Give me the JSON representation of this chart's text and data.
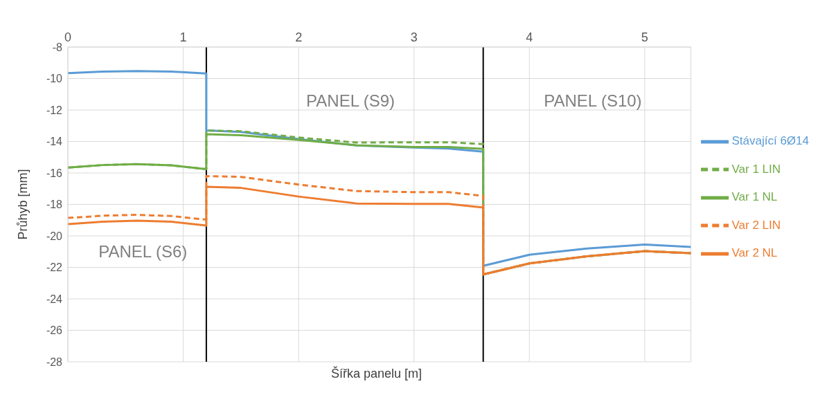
{
  "chart_data": {
    "type": "line",
    "xlabel": "Šířka panelu [m]",
    "ylabel": "Průhyb [mm]",
    "x": [
      0,
      0.3,
      0.6,
      0.9,
      1.2,
      1.2,
      1.5,
      2,
      2.5,
      3,
      3.3,
      3.6,
      3.6,
      4,
      4.5,
      5,
      5.4
    ],
    "series": [
      {
        "name": "Stávající 6Ø14",
        "color": "#5b9bd5",
        "line_style": "solid",
        "values": [
          -9.66,
          -9.56,
          -9.53,
          -9.56,
          -9.68,
          -13.3,
          -13.4,
          -13.85,
          -14.25,
          -14.38,
          -14.45,
          -14.65,
          -21.9,
          -21.2,
          -20.8,
          -20.55,
          -20.7
        ]
      },
      {
        "name": "Var 1 LIN",
        "color": "#70ad47",
        "line_style": "dashed",
        "values": [
          -15.66,
          -15.5,
          -15.44,
          -15.52,
          -15.76,
          -13.3,
          -13.35,
          -13.75,
          -14.07,
          -14.05,
          -14.05,
          -14.17,
          -22.45,
          -21.75,
          -21.3,
          -20.97,
          -21.1
        ]
      },
      {
        "name": "Var 1 NL",
        "color": "#70ad47",
        "line_style": "solid",
        "values": [
          -15.66,
          -15.5,
          -15.44,
          -15.52,
          -15.76,
          -13.54,
          -13.6,
          -13.9,
          -14.24,
          -14.35,
          -14.35,
          -14.47,
          -22.45,
          -21.75,
          -21.3,
          -20.97,
          -21.1
        ]
      },
      {
        "name": "Var 2 LIN",
        "color": "#ed7d31",
        "line_style": "dashed",
        "values": [
          -18.86,
          -18.72,
          -18.66,
          -18.74,
          -18.97,
          -16.2,
          -16.25,
          -16.74,
          -17.15,
          -17.22,
          -17.22,
          -17.46,
          -22.45,
          -21.75,
          -21.3,
          -20.97,
          -21.1
        ]
      },
      {
        "name": "Var 2 NL",
        "color": "#ed7d31",
        "line_style": "solid",
        "values": [
          -19.25,
          -19.1,
          -19.03,
          -19.1,
          -19.34,
          -16.88,
          -16.95,
          -17.5,
          -17.94,
          -17.97,
          -17.97,
          -18.2,
          -22.45,
          -21.75,
          -21.3,
          -20.97,
          -21.1
        ]
      }
    ],
    "xlim": [
      0,
      5.4
    ],
    "xticks": [
      0,
      1,
      2,
      3,
      4,
      5
    ],
    "ylim": [
      -28,
      -8
    ],
    "yticks": [
      -28,
      -26,
      -24,
      -22,
      -20,
      -18,
      -16,
      -14,
      -12,
      -10,
      -8
    ],
    "ref_lines": [
      {
        "axis": "x",
        "value": 1.2,
        "color": "#000000"
      },
      {
        "axis": "x",
        "value": 3.6,
        "color": "#000000"
      }
    ],
    "annotations": [
      "PANEL (S6)",
      "PANEL (S9)",
      "PANEL (S10)"
    ],
    "grid": true,
    "legend": "right",
    "marker": "none"
  }
}
